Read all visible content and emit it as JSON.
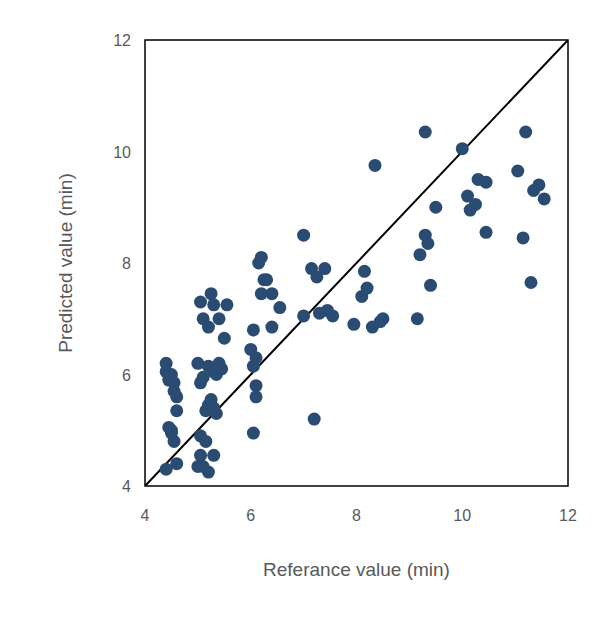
{
  "chart_data": {
    "type": "scatter",
    "xlabel": "Referance value (min)",
    "ylabel": "Predicted value (min)",
    "color": "#2b4c72",
    "marker": "circle",
    "xlim": [
      4,
      12
    ],
    "ylim": [
      4,
      12
    ],
    "xticks": [
      4,
      6,
      8,
      10,
      12
    ],
    "yticks": [
      4,
      6,
      8,
      10,
      12
    ],
    "x": [
      4.4,
      4.4,
      4.45,
      4.5,
      4.55,
      4.55,
      4.6,
      4.6,
      4.45,
      4.5,
      4.55,
      4.4,
      4.6,
      4.5,
      5.05,
      5.25,
      5.3,
      5.1,
      5.2,
      5.4,
      5.55,
      5.5,
      5.0,
      5.2,
      5.3,
      5.4,
      5.45,
      5.35,
      5.05,
      5.1,
      5.25,
      5.2,
      5.15,
      5.3,
      5.35,
      5.05,
      5.15,
      5.05,
      5.3,
      5.1,
      5.2,
      5.0,
      6.05,
      6.0,
      6.1,
      6.05,
      6.1,
      6.1,
      6.05,
      6.15,
      6.2,
      6.25,
      6.3,
      6.2,
      6.4,
      6.55,
      6.4,
      7.0,
      7.0,
      7.15,
      7.25,
      7.4,
      7.3,
      7.45,
      7.55,
      7.2,
      7.95,
      8.1,
      8.2,
      8.15,
      8.3,
      8.45,
      8.5,
      8.35,
      9.15,
      9.2,
      9.3,
      9.35,
      9.4,
      9.3,
      9.5,
      10.0,
      10.1,
      10.15,
      10.25,
      10.3,
      10.45,
      10.45,
      11.05,
      11.15,
      11.2,
      11.3,
      11.35,
      11.45,
      11.55
    ],
    "y": [
      6.2,
      6.05,
      5.9,
      6.0,
      5.85,
      5.7,
      5.6,
      5.35,
      5.05,
      4.95,
      4.8,
      4.3,
      4.4,
      5.0,
      7.3,
      7.45,
      7.25,
      7.0,
      6.85,
      7.0,
      7.25,
      6.65,
      6.2,
      6.15,
      6.05,
      6.2,
      6.1,
      6.0,
      5.85,
      5.95,
      5.55,
      5.45,
      5.35,
      5.4,
      5.3,
      4.9,
      4.8,
      4.55,
      4.55,
      4.35,
      4.25,
      4.35,
      6.8,
      6.45,
      6.3,
      6.15,
      5.8,
      5.6,
      4.95,
      8.0,
      8.1,
      7.7,
      7.7,
      7.45,
      7.45,
      7.2,
      6.85,
      8.5,
      7.05,
      7.9,
      7.75,
      7.9,
      7.1,
      7.15,
      7.05,
      5.2,
      6.9,
      7.4,
      7.55,
      7.85,
      6.85,
      6.95,
      7.0,
      9.75,
      7.0,
      8.15,
      8.5,
      8.35,
      7.6,
      10.35,
      9.0,
      10.05,
      9.2,
      8.95,
      9.05,
      9.5,
      9.45,
      8.55,
      9.65,
      8.45,
      10.35,
      7.65,
      9.3,
      9.4,
      9.15
    ]
  }
}
